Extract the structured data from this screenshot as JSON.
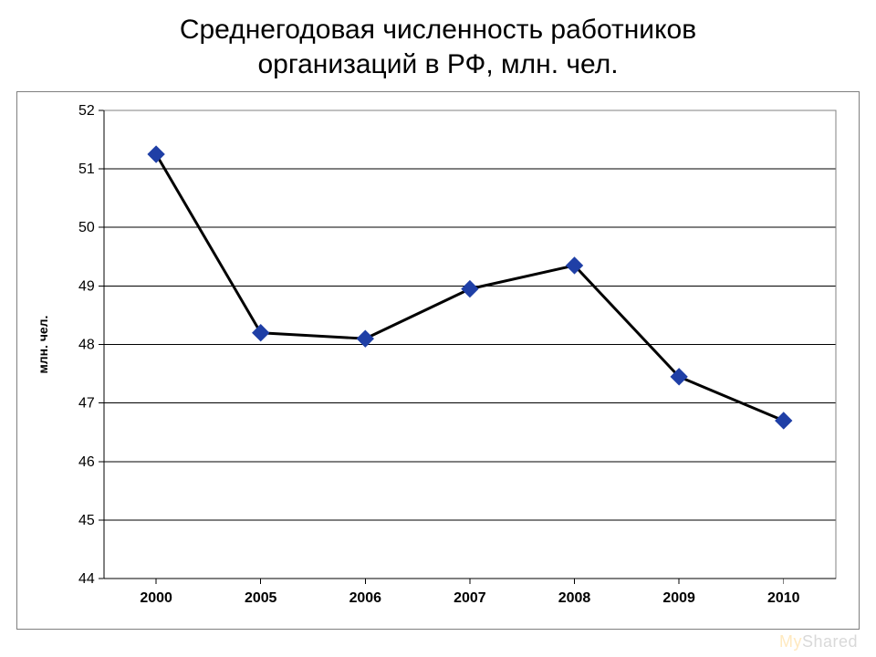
{
  "title_line1": "Среднегодовая численность работников",
  "title_line2": "организаций в РФ, млн. чел.",
  "watermark_a": "My",
  "watermark_b": "Shared",
  "chart": {
    "type": "line",
    "title_fontsize": 30,
    "background_color": "#ffffff",
    "frame_border_color": "#7f7f7f",
    "plot_border_color": "#808080",
    "grid_color": "#000000",
    "grid_line_width": 1,
    "axis_line_width": 1,
    "ylabel": "млн. чел.",
    "ylabel_fontsize": 14,
    "ylabel_bold": true,
    "xlabel_fontsize": 16,
    "xlabel_bold": true,
    "tick_fontsize": 16,
    "ylim": [
      44,
      52
    ],
    "ytick_step": 1,
    "yticks": [
      44,
      45,
      46,
      47,
      48,
      49,
      50,
      51,
      52
    ],
    "xcategories": [
      "2000",
      "2005",
      "2006",
      "2007",
      "2008",
      "2009",
      "2010"
    ],
    "series": {
      "values": [
        51.25,
        48.2,
        48.1,
        48.95,
        49.35,
        47.45,
        46.7
      ],
      "line_color": "#000000",
      "line_width": 3,
      "marker_shape": "diamond",
      "marker_fill": "#1f3fa6",
      "marker_size": 18
    }
  }
}
